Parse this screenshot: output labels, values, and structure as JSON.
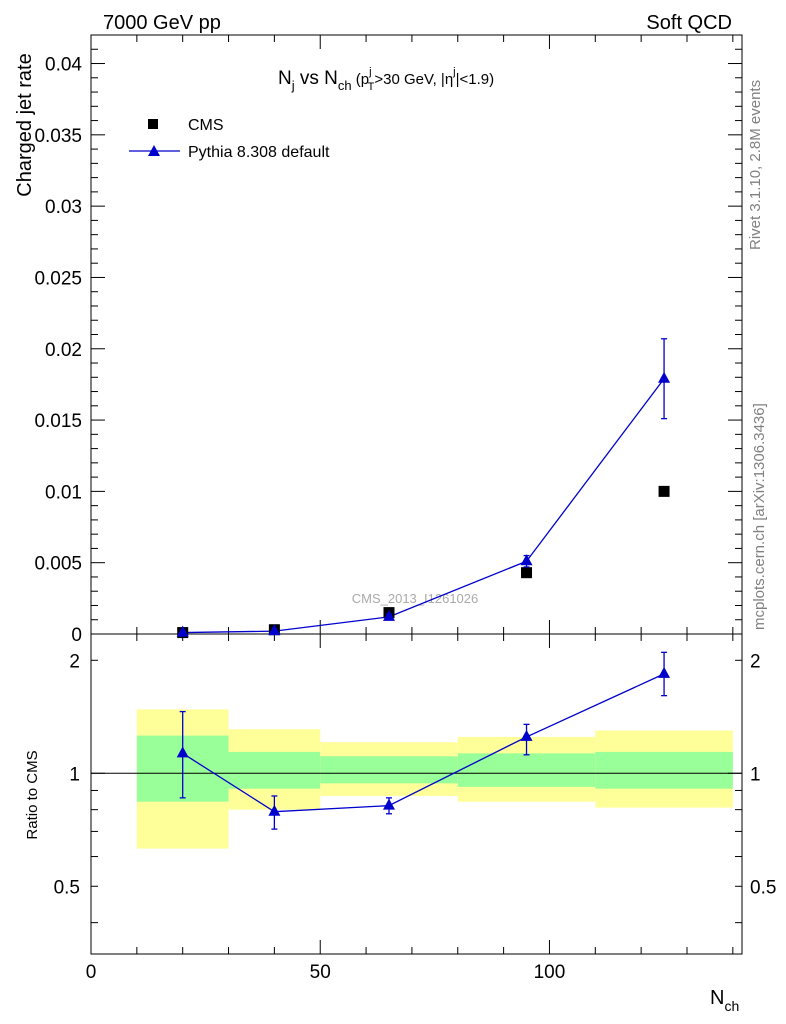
{
  "header": {
    "left": "7000 GeV pp",
    "right": "Soft QCD"
  },
  "side": {
    "rivet": "Rivet 3.1.10,  2.8M events",
    "mcplots": "mcplots.cern.ch [arXiv:1306.3436]"
  },
  "title": {
    "n": "N",
    "n_sub": "j",
    "vs": " vs N",
    "ch_sub": "ch",
    "paren_open": " (p",
    "pt_sup": "j",
    "pt_sub": "T",
    "cut1": ">30 GeV, |η",
    "eta_sup": "j",
    "cut2": "|<1.9)"
  },
  "watermark": "CMS_2013_I1261026",
  "colors": {
    "cms": "#000000",
    "pythia": "#0000cc",
    "band_inner": "#99ff99",
    "band_outer": "#ffff99"
  },
  "chart_data": {
    "type": "scatter",
    "x_axis": {
      "label": "N",
      "label_sub": "ch",
      "ticks": [
        "0",
        "50",
        "100"
      ],
      "range": [
        0,
        142
      ]
    },
    "top_panel": {
      "ylabel": "Charged jet rate",
      "ylim": [
        0,
        0.042
      ],
      "yticks": [
        "0",
        "0.005",
        "0.01",
        "0.015",
        "0.02",
        "0.025",
        "0.03",
        "0.035",
        "0.04"
      ],
      "series": [
        {
          "name": "CMS",
          "marker": "square",
          "x": [
            20,
            40,
            65,
            95,
            125
          ],
          "y": [
            0.0001,
            0.0003,
            0.0015,
            0.0043,
            0.01
          ]
        },
        {
          "name": "Pythia 8.308 default",
          "marker": "triangle",
          "x": [
            20,
            40,
            65,
            95,
            125
          ],
          "y": [
            0.0001,
            0.0002,
            0.0012,
            0.0051,
            0.0179
          ],
          "yerr": [
            0,
            0,
            0.0002,
            0.0004,
            0.0028
          ]
        }
      ]
    },
    "ratio_panel": {
      "ylabel": "Ratio to CMS",
      "ylim": [
        0.33,
        2.35
      ],
      "yticks": [
        "0.5",
        "1",
        "2"
      ],
      "bands": [
        {
          "x0": 10,
          "x1": 30,
          "inner": [
            0.84,
            1.26
          ],
          "outer": [
            0.63,
            1.48
          ]
        },
        {
          "x0": 30,
          "x1": 50,
          "inner": [
            0.91,
            1.14
          ],
          "outer": [
            0.8,
            1.31
          ]
        },
        {
          "x0": 50,
          "x1": 80,
          "inner": [
            0.94,
            1.11
          ],
          "outer": [
            0.87,
            1.21
          ]
        },
        {
          "x0": 80,
          "x1": 110,
          "inner": [
            0.92,
            1.13
          ],
          "outer": [
            0.84,
            1.25
          ]
        },
        {
          "x0": 110,
          "x1": 140,
          "inner": [
            0.91,
            1.14
          ],
          "outer": [
            0.81,
            1.3
          ]
        }
      ],
      "series": {
        "name": "Pythia 8.308 default",
        "x": [
          20,
          40,
          65,
          95,
          125
        ],
        "y": [
          1.13,
          0.79,
          0.82,
          1.25,
          1.84
        ],
        "yerr_lo": [
          0.27,
          0.08,
          0.04,
          0.13,
          0.23
        ],
        "yerr_hi": [
          0.33,
          0.08,
          0.04,
          0.1,
          0.26
        ]
      }
    }
  }
}
